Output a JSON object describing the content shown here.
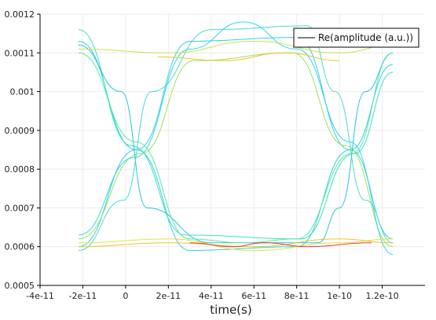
{
  "chart_data": {
    "type": "line",
    "title": "",
    "xlabel": "time(s)",
    "ylabel": "",
    "xlim": [
      -4e-11,
      1.4e-10
    ],
    "ylim": [
      0.0005,
      0.0012
    ],
    "x_ticks": [
      {
        "value": -4e-11,
        "label": "-4e-11"
      },
      {
        "value": -2e-11,
        "label": "-2e-11"
      },
      {
        "value": 0,
        "label": "0"
      },
      {
        "value": 2e-11,
        "label": "2e-11"
      },
      {
        "value": 4e-11,
        "label": "4e-11"
      },
      {
        "value": 6e-11,
        "label": "6e-11"
      },
      {
        "value": 8e-11,
        "label": "8e-11"
      },
      {
        "value": 1e-10,
        "label": "1e-10"
      },
      {
        "value": 1.2e-10,
        "label": "1.2e-10"
      }
    ],
    "y_ticks": [
      {
        "value": 0.0005,
        "label": "0.0005"
      },
      {
        "value": 0.0006,
        "label": "0.0006"
      },
      {
        "value": 0.0007,
        "label": "0.0007"
      },
      {
        "value": 0.0008,
        "label": "0.0008"
      },
      {
        "value": 0.0009,
        "label": "0.0009"
      },
      {
        "value": 0.001,
        "label": "0.001"
      },
      {
        "value": 0.0011,
        "label": "0.0011"
      },
      {
        "value": 0.0012,
        "label": "0.0012"
      }
    ],
    "grid": true,
    "legend": {
      "placement": "top-right",
      "entries": [
        "Re(amplitude (a.u.))"
      ]
    },
    "description_style": "eye diagram: overlaid traces colored cyan/green/yellow/red by density",
    "eye": {
      "x_start": -2.2e-11,
      "x_end": 1.25e-10,
      "crossing_1": 5e-12,
      "crossing_2": 1.05e-10,
      "crossing_level": 0.00085,
      "high_level": 0.00111,
      "low_level": 0.00061
    },
    "series": [
      {
        "segments": [
          [
            -2.2e-11,
            0.00113
          ],
          [
            5e-12,
            0.00085
          ],
          [
            3e-11,
            0.00059
          ],
          [
            8e-11,
            0.0006
          ],
          [
            1.05e-10,
            0.00085
          ],
          [
            1.25e-10,
            0.00107
          ]
        ],
        "color": "#22d0d8"
      },
      {
        "segments": [
          [
            -2.2e-11,
            0.0006
          ],
          [
            5e-12,
            0.00085
          ],
          [
            3e-11,
            0.00113
          ],
          [
            8e-11,
            0.00114
          ],
          [
            1.05e-10,
            0.00085
          ],
          [
            1.25e-10,
            0.00062
          ]
        ],
        "color": "#30c8e0"
      },
      {
        "segments": [
          [
            -2.2e-11,
            0.00116
          ],
          [
            3e-12,
            0.00086
          ],
          [
            2.8e-11,
            0.00063
          ],
          [
            8.2e-11,
            0.00062
          ],
          [
            1.07e-10,
            0.00084
          ],
          [
            1.25e-10,
            0.00105
          ]
        ],
        "color": "#2fe0c0"
      },
      {
        "segments": [
          [
            -2.2e-11,
            0.00062
          ],
          [
            7e-12,
            0.00084
          ],
          [
            3.2e-11,
            0.00108
          ],
          [
            7.8e-11,
            0.0011
          ],
          [
            1.03e-10,
            0.00086
          ],
          [
            1.25e-10,
            0.0006
          ]
        ],
        "color": "#9be050"
      },
      {
        "segments": [
          [
            -2.2e-11,
            0.00112
          ],
          [
            -2e-12,
            0.001
          ],
          [
            1e-11,
            0.0007
          ],
          [
            4e-11,
            0.00061
          ],
          [
            9e-11,
            0.00061
          ],
          [
            1e-10,
            0.0007
          ],
          [
            1.12e-10,
            0.001
          ],
          [
            1.25e-10,
            0.0011
          ]
        ],
        "color": "#20c0e0"
      },
      {
        "segments": [
          [
            -2.2e-11,
            0.00059
          ],
          [
            -1e-12,
            0.00072
          ],
          [
            1.2e-11,
            0.001
          ],
          [
            4e-11,
            0.00116
          ],
          [
            8.5e-11,
            0.00117
          ],
          [
            9.8e-11,
            0.001
          ],
          [
            1.12e-10,
            0.00072
          ],
          [
            1.25e-10,
            0.00061
          ]
        ],
        "color": "#40d8d0"
      },
      {
        "segments": [
          [
            -2.2e-11,
            0.0011
          ],
          [
            5e-12,
            0.00087
          ],
          [
            3e-11,
            0.00062
          ],
          [
            5.5e-11,
            0.00061
          ],
          [
            8e-11,
            0.00062
          ],
          [
            1.06e-10,
            0.00084
          ],
          [
            1.25e-10,
            0.0011
          ]
        ],
        "color": "#50e8a0"
      },
      {
        "segments": [
          [
            -2.2e-11,
            0.00063
          ],
          [
            4e-12,
            0.00083
          ],
          [
            3e-11,
            0.00111
          ],
          [
            5.5e-11,
            0.00118
          ],
          [
            8e-11,
            0.00111
          ],
          [
            1.05e-10,
            0.00087
          ],
          [
            1.25e-10,
            0.00058
          ]
        ],
        "color": "#20d8f0"
      },
      {
        "segments": [
          [
            -2.2e-11,
            0.00061
          ],
          [
            2e-11,
            0.00062
          ],
          [
            6e-11,
            0.00059
          ],
          [
            1e-10,
            0.00061
          ],
          [
            1.25e-10,
            0.00062
          ]
        ],
        "color": "#e0e040"
      },
      {
        "segments": [
          [
            -2.2e-11,
            0.0006
          ],
          [
            2e-11,
            0.00061
          ],
          [
            6e-11,
            0.0006
          ],
          [
            1e-10,
            0.00062
          ],
          [
            1.25e-10,
            0.00061
          ]
        ],
        "color": "#f0c020"
      },
      {
        "segments": [
          [
            3e-11,
            0.00061
          ],
          [
            5e-11,
            0.0006
          ],
          [
            6.5e-11,
            0.00061
          ],
          [
            8.5e-11,
            0.0006
          ],
          [
            1.15e-10,
            0.00061
          ]
        ],
        "color": "#e83020"
      },
      {
        "segments": [
          [
            -2.2e-11,
            0.00111
          ],
          [
            2e-11,
            0.0011
          ],
          [
            6e-11,
            0.00113
          ],
          [
            1e-10,
            0.0011
          ],
          [
            1.25e-10,
            0.00112
          ]
        ],
        "color": "#c8e040"
      },
      {
        "segments": [
          [
            1.5e-11,
            0.00109
          ],
          [
            4.5e-11,
            0.00108
          ],
          [
            7.5e-11,
            0.0011
          ],
          [
            1e-10,
            0.00108
          ]
        ],
        "color": "#f0c020"
      }
    ]
  }
}
